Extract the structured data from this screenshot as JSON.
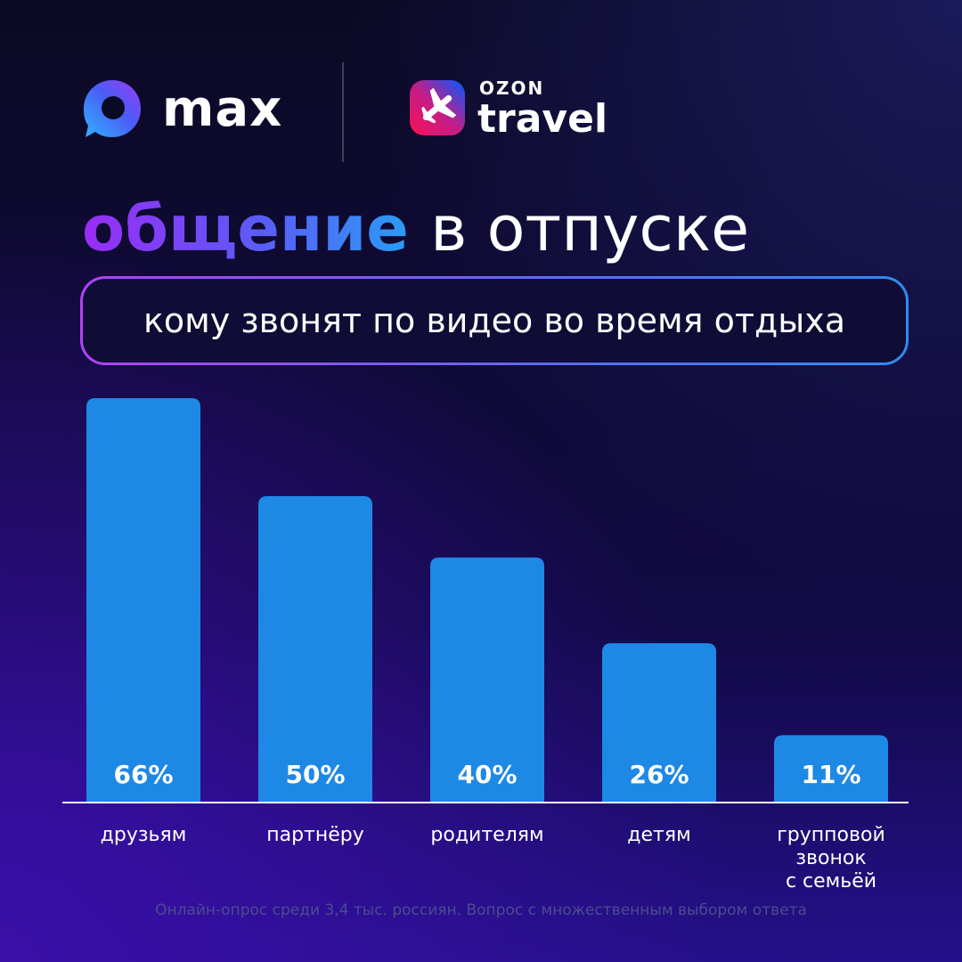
{
  "brand": {
    "max_name": "max",
    "ozon_name": "OZON",
    "travel_name": "travel",
    "colors": {
      "bar": "#1e88e5",
      "accent_start": "#9a2cf5",
      "accent_end": "#2a9cf5",
      "ozon_pink": "#f91155",
      "ozon_blue": "#005bff"
    }
  },
  "headline": {
    "accent": "общение",
    "rest": "в отпуске"
  },
  "subtitle": "кому звонят по видео во время отдыха",
  "footnote": "Онлайн-опрос среди 3,4 тыс. россиян. Вопрос с множественным выбором ответа",
  "chart_data": {
    "type": "bar",
    "categories": [
      [
        "друзьям"
      ],
      [
        "партнёру"
      ],
      [
        "родителям"
      ],
      [
        "детям"
      ],
      [
        "групповой",
        "звонок",
        "с семьёй"
      ]
    ],
    "values": [
      66,
      50,
      40,
      26,
      11
    ],
    "value_labels": [
      "66%",
      "50%",
      "40%",
      "26%",
      "11%"
    ],
    "title": "",
    "xlabel": "",
    "ylabel": "",
    "ylim": [
      0,
      66
    ],
    "grid": false,
    "legend": "none"
  }
}
